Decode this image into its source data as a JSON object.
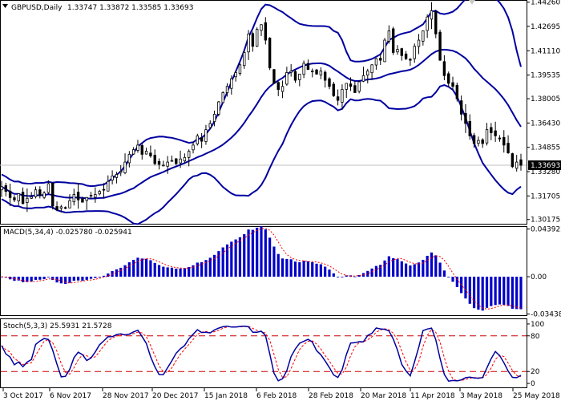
{
  "header": {
    "symbol": "GBPUSD,Daily",
    "ohlc": "1.33747 1.33872 1.33585 1.33693"
  },
  "colors": {
    "background": "#ffffff",
    "border": "#000000",
    "candle": "#000000",
    "bands": "#0000a0",
    "macd_hist": "#0000c8",
    "macd_signal": "#ff0000",
    "stoch_main": "#0000a0",
    "stoch_signal": "#ff0000",
    "level_line": "#cc0000",
    "current_price_line": "#c0c0c0",
    "marker": "#c8c8c8"
  },
  "x_labels": [
    "3 Oct 2017",
    "6 Nov 2017",
    "28 Nov 2017",
    "20 Dec 2017",
    "15 Jan 2018",
    "6 Feb 2018",
    "28 Feb 2018",
    "20 Mar 2018",
    "11 Apr 2018",
    "3 May 2018",
    "25 May 2018"
  ],
  "chart_data": [
    {
      "type": "candlestick",
      "title": "GBPUSD,Daily",
      "ylim": [
        1.2985,
        1.444
      ],
      "y_ticks": [
        "1.44260",
        "1.42695",
        "1.41110",
        "1.39535",
        "1.38005",
        "1.36430",
        "1.34855",
        "1.33280",
        "1.31705",
        "1.30175"
      ],
      "current_price": "1.33693",
      "close": [
        1.323,
        1.32,
        1.316,
        1.3145,
        1.3185,
        1.312,
        1.3155,
        1.3165,
        1.321,
        1.3175,
        1.319,
        1.325,
        1.3105,
        1.308,
        1.31,
        1.3095,
        1.314,
        1.318,
        1.3145,
        1.313,
        1.316,
        1.3175,
        1.318,
        1.32,
        1.321,
        1.3265,
        1.33,
        1.331,
        1.333,
        1.339,
        1.344,
        1.347,
        1.35,
        1.344,
        1.346,
        1.343,
        1.338,
        1.3375,
        1.337,
        1.339,
        1.34,
        1.338,
        1.341,
        1.342,
        1.346,
        1.35,
        1.356,
        1.3525,
        1.36,
        1.364,
        1.37,
        1.378,
        1.384,
        1.388,
        1.393,
        1.397,
        1.402,
        1.41,
        1.422,
        1.414,
        1.425,
        1.428,
        1.418,
        1.4,
        1.39,
        1.386,
        1.388,
        1.397,
        1.398,
        1.392,
        1.396,
        1.403,
        1.399,
        1.398,
        1.396,
        1.398,
        1.392,
        1.388,
        1.382,
        1.379,
        1.386,
        1.39,
        1.388,
        1.384,
        1.391,
        1.395,
        1.398,
        1.402,
        1.406,
        1.405,
        1.418,
        1.424,
        1.41,
        1.412,
        1.408,
        1.406,
        1.405,
        1.414,
        1.418,
        1.424,
        1.433,
        1.437,
        1.422,
        1.405,
        1.395,
        1.39,
        1.388,
        1.38,
        1.37,
        1.364,
        1.356,
        1.351,
        1.353,
        1.351,
        1.36,
        1.358,
        1.356,
        1.354,
        1.35,
        1.345,
        1.336,
        1.339,
        1.3369
      ]
    },
    {
      "type": "bar",
      "title": "MACD(5,34,4) -0.025780 -0.025941",
      "ylim": [
        -0.0362,
        0.0458
      ],
      "y_ticks": [
        "0.043922",
        "0.00",
        "-0.034388"
      ]
    },
    {
      "type": "line",
      "title": "Stoch(5,3,3) 25.5931 21.5728",
      "ylim": [
        -8,
        108
      ],
      "y_ticks": [
        "100",
        "80",
        "20",
        "0"
      ],
      "levels": [
        80,
        20
      ]
    }
  ]
}
